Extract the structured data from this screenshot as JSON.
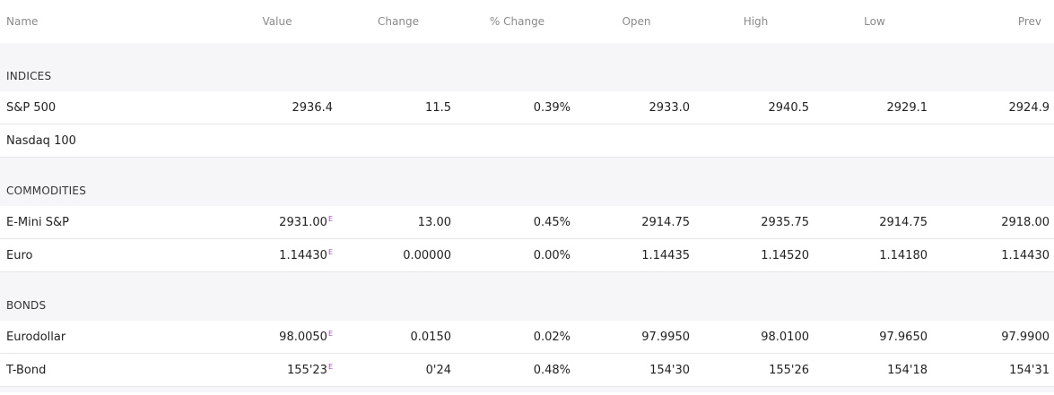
{
  "header": {
    "name": "Name",
    "value": "Value",
    "change": "Change",
    "pct_change": "% Change",
    "open": "Open",
    "high": "High",
    "low": "Low",
    "prev": "Prev"
  },
  "sections": [
    {
      "title": "INDICES",
      "rows": [
        {
          "name": "S&P 500",
          "value": "2936.4",
          "estimated": false,
          "change": "11.5",
          "pct_change": "0.39%",
          "open": "2933.0",
          "high": "2940.5",
          "low": "2929.1",
          "prev": "2924.9",
          "direction": "up"
        },
        {
          "name": "Nasdaq 100",
          "value": "",
          "estimated": false,
          "change": "",
          "pct_change": "",
          "open": "",
          "high": "",
          "low": "",
          "prev": "",
          "direction": "none"
        }
      ]
    },
    {
      "title": "COMMODITIES",
      "rows": [
        {
          "name": "E-Mini S&P",
          "value": "2931.00",
          "estimated": true,
          "change": "13.00",
          "pct_change": "0.45%",
          "open": "2914.75",
          "high": "2935.75",
          "low": "2914.75",
          "prev": "2918.00",
          "direction": "up"
        },
        {
          "name": "Euro",
          "value": "1.14430",
          "estimated": true,
          "change": "0.00000",
          "pct_change": "0.00%",
          "open": "1.14435",
          "high": "1.14520",
          "low": "1.14180",
          "prev": "1.14430",
          "direction": "flat"
        }
      ]
    },
    {
      "title": "BONDS",
      "rows": [
        {
          "name": "Eurodollar",
          "value": "98.0050",
          "estimated": true,
          "change": "0.0150",
          "pct_change": "0.02%",
          "open": "97.9950",
          "high": "98.0100",
          "low": "97.9650",
          "prev": "97.9900",
          "direction": "up"
        },
        {
          "name": "T-Bond",
          "value": "155'23",
          "estimated": true,
          "change": "0'24",
          "pct_change": "0.48%",
          "open": "154'30",
          "high": "155'26",
          "low": "154'18",
          "prev": "154'31",
          "direction": "up"
        }
      ]
    }
  ],
  "estimate_marker": "E",
  "colors": {
    "positive": "#26a383",
    "estimate_marker": "#a050b8",
    "section_bg": "#f6f6f8",
    "header_text": "#8a8a8a"
  }
}
